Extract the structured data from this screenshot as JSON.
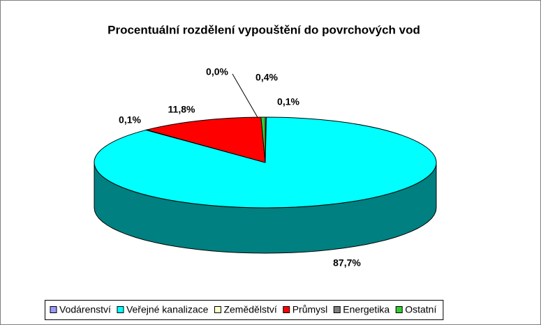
{
  "chart_data": {
    "type": "pie3d",
    "title": "Procentuální rozdělení vypouštění do povrchových vod",
    "categories": [
      "Vodárenství",
      "Veřejné kanalizace",
      "Zemědělství",
      "Průmysl",
      "Energetika",
      "Ostatní"
    ],
    "values": [
      0.1,
      87.7,
      0.1,
      11.8,
      0.0,
      0.4
    ],
    "value_labels": [
      "0,1%",
      "87,7%",
      "0,1%",
      "11,8%",
      "0,0%",
      "0,4%"
    ],
    "colors": [
      "#9999ff",
      "#00ffff",
      "#ffffcc",
      "#ff0000",
      "#808080",
      "#33cc33"
    ],
    "legend": "bottom"
  }
}
